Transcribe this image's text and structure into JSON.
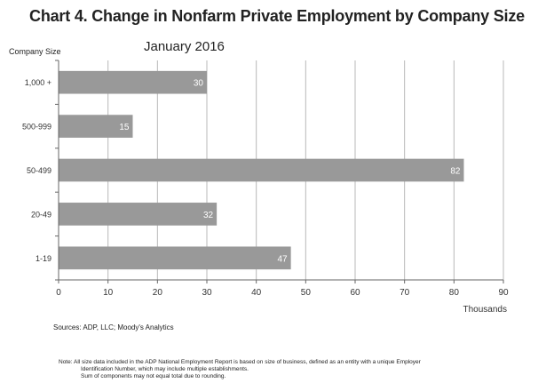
{
  "title": "Chart 4. Change in Nonfarm Private Employment by Company Size",
  "subtitle": "January 2016",
  "chart_data": {
    "type": "bar",
    "orientation": "horizontal",
    "title": "Chart 4. Change in Nonfarm Private Employment by Company Size",
    "subtitle": "January 2016",
    "ylabel": "Company Size",
    "xlabel": "Thousands",
    "categories": [
      "1,000 +",
      "500-999",
      "50-499",
      "20-49",
      "1-19"
    ],
    "values": [
      30,
      15,
      82,
      32,
      47
    ],
    "data_labels": [
      "30",
      "15",
      "82",
      "32",
      "47"
    ],
    "xlim": [
      0,
      90
    ],
    "xticks": [
      "0",
      "10",
      "20",
      "30",
      "40",
      "50",
      "60",
      "70",
      "80",
      "90"
    ],
    "grid": "vertical",
    "bar_color": "#999999"
  },
  "source": "Sources: ADP, LLC; Moody's Analytics",
  "note": {
    "line1": "Note: All size data included in the ADP National Employment Report is based on size of business, defined as an entity with a unique Employer",
    "line2": "Identification Number, which may include multiple establishments.",
    "line3": "Sum of components may not equal total due to rounding."
  }
}
